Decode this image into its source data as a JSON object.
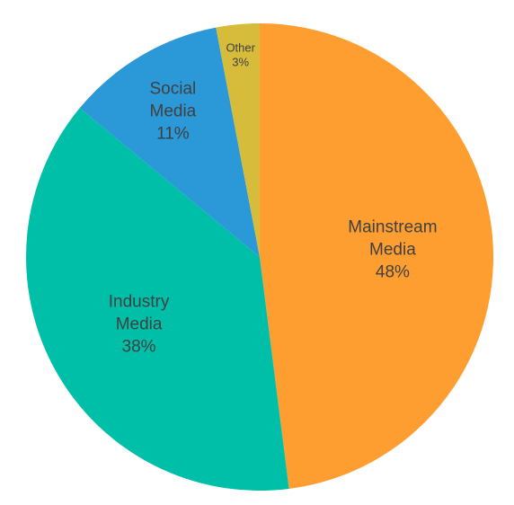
{
  "chart_data": {
    "type": "pie",
    "title": "",
    "slices": [
      {
        "label_lines": [
          "Mainstream",
          "Media"
        ],
        "value": 48,
        "value_label": "48%",
        "color": "#FF9E30"
      },
      {
        "label_lines": [
          "Industry",
          "Media"
        ],
        "value": 38,
        "value_label": "38%",
        "color": "#00BFA8"
      },
      {
        "label_lines": [
          "Social",
          "Media"
        ],
        "value": 11,
        "value_label": "11%",
        "color": "#2B98D8"
      },
      {
        "label_lines": [
          "Other"
        ],
        "value": 3,
        "value_label": "3%",
        "color": "#D7BC3B"
      }
    ],
    "start_position": "top",
    "direction": "clockwise",
    "labels_inside": true
  }
}
